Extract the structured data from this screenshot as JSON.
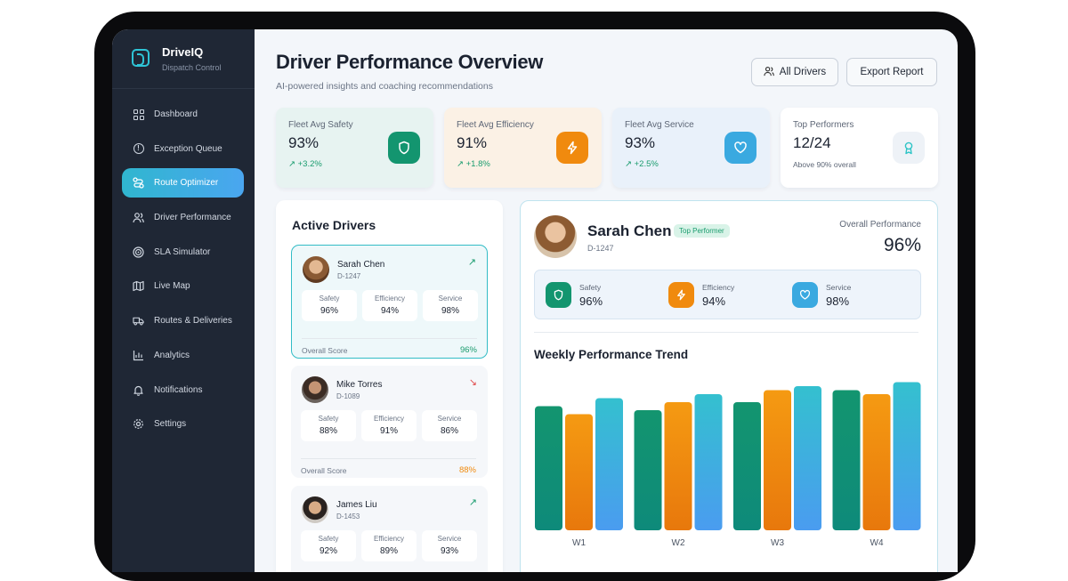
{
  "brand": {
    "name": "DriveIQ",
    "subtitle": "Dispatch Control"
  },
  "nav": [
    {
      "label": "Dashboard",
      "icon": "grid-icon"
    },
    {
      "label": "Exception Queue",
      "icon": "alert-circle-icon"
    },
    {
      "label": "Route Optimizer",
      "icon": "route-icon",
      "active": true
    },
    {
      "label": "Driver Performance",
      "icon": "users-icon"
    },
    {
      "label": "SLA Simulator",
      "icon": "target-icon"
    },
    {
      "label": "Live Map",
      "icon": "map-icon"
    },
    {
      "label": "Routes & Deliveries",
      "icon": "truck-icon"
    },
    {
      "label": "Analytics",
      "icon": "bar-chart-icon"
    },
    {
      "label": "Notifications",
      "icon": "bell-icon"
    },
    {
      "label": "Settings",
      "icon": "gear-icon"
    }
  ],
  "header": {
    "title": "Driver Performance Overview",
    "subtitle": "AI-powered insights and coaching recommendations",
    "all_drivers_label": "All Drivers",
    "export_label": "Export Report"
  },
  "stats": [
    {
      "label": "Fleet Avg Safety",
      "value": "93%",
      "change": "+3.2%",
      "icon": "shield-icon",
      "color": "#13956f",
      "bg": "#e7f3f1"
    },
    {
      "label": "Fleet Avg Efficiency",
      "value": "91%",
      "change": "+1.8%",
      "icon": "bolt-icon",
      "color": "#f08a0e",
      "bg": "#fbf1e5"
    },
    {
      "label": "Fleet Avg Service",
      "value": "93%",
      "change": "+2.5%",
      "icon": "heart-icon",
      "color": "#3aa9e0",
      "bg": "#e9f1fa"
    },
    {
      "label": "Top Performers",
      "value": "12/24",
      "note": "Above 90% overall",
      "icon": "award-icon",
      "color": "#eef2f7",
      "bg": "#ffffff"
    }
  ],
  "active_drivers": {
    "title": "Active Drivers",
    "overall_label": "Overall Score",
    "metric_labels": [
      "Safety",
      "Efficiency",
      "Service"
    ],
    "drivers": [
      {
        "name": "Sarah Chen",
        "id": "D-1247",
        "trend": "up",
        "safety": "96%",
        "efficiency": "94%",
        "service": "98%",
        "overall": "96%",
        "overall_color": "#1a9c6e",
        "selected": true
      },
      {
        "name": "Mike Torres",
        "id": "D-1089",
        "trend": "down",
        "safety": "88%",
        "efficiency": "91%",
        "service": "86%",
        "overall": "88%",
        "overall_color": "#f08a0e",
        "selected": false
      },
      {
        "name": "James Liu",
        "id": "D-1453",
        "trend": "up",
        "safety": "92%",
        "efficiency": "89%",
        "service": "93%",
        "overall": "",
        "overall_color": "#1a9c6e",
        "selected": false
      }
    ]
  },
  "profile": {
    "name": "Sarah Chen",
    "tag": "Top Performer",
    "id": "D-1247",
    "overall_label": "Overall Performance",
    "overall_value": "96%",
    "metrics": [
      {
        "label": "Safety",
        "value": "96%",
        "icon": "shield-icon",
        "color": "#13956f"
      },
      {
        "label": "Efficiency",
        "value": "94%",
        "icon": "bolt-icon",
        "color": "#f08a0e"
      },
      {
        "label": "Service",
        "value": "98%",
        "icon": "heart-icon",
        "color": "#3aa9e0"
      }
    ]
  },
  "chart_data": {
    "type": "bar",
    "title": "Weekly Performance Trend",
    "categories": [
      "W1",
      "W2",
      "W3",
      "W4"
    ],
    "series": [
      {
        "values": [
          91,
          90,
          92,
          95
        ],
        "color": "#13956f"
      },
      {
        "values": [
          89,
          92,
          95,
          94
        ],
        "color": "#f08a0e"
      },
      {
        "values": [
          93,
          94,
          96,
          97
        ],
        "color": "#3aa9e0"
      }
    ],
    "ylim": [
      60,
      100
    ],
    "grid": false,
    "legend": "none"
  }
}
